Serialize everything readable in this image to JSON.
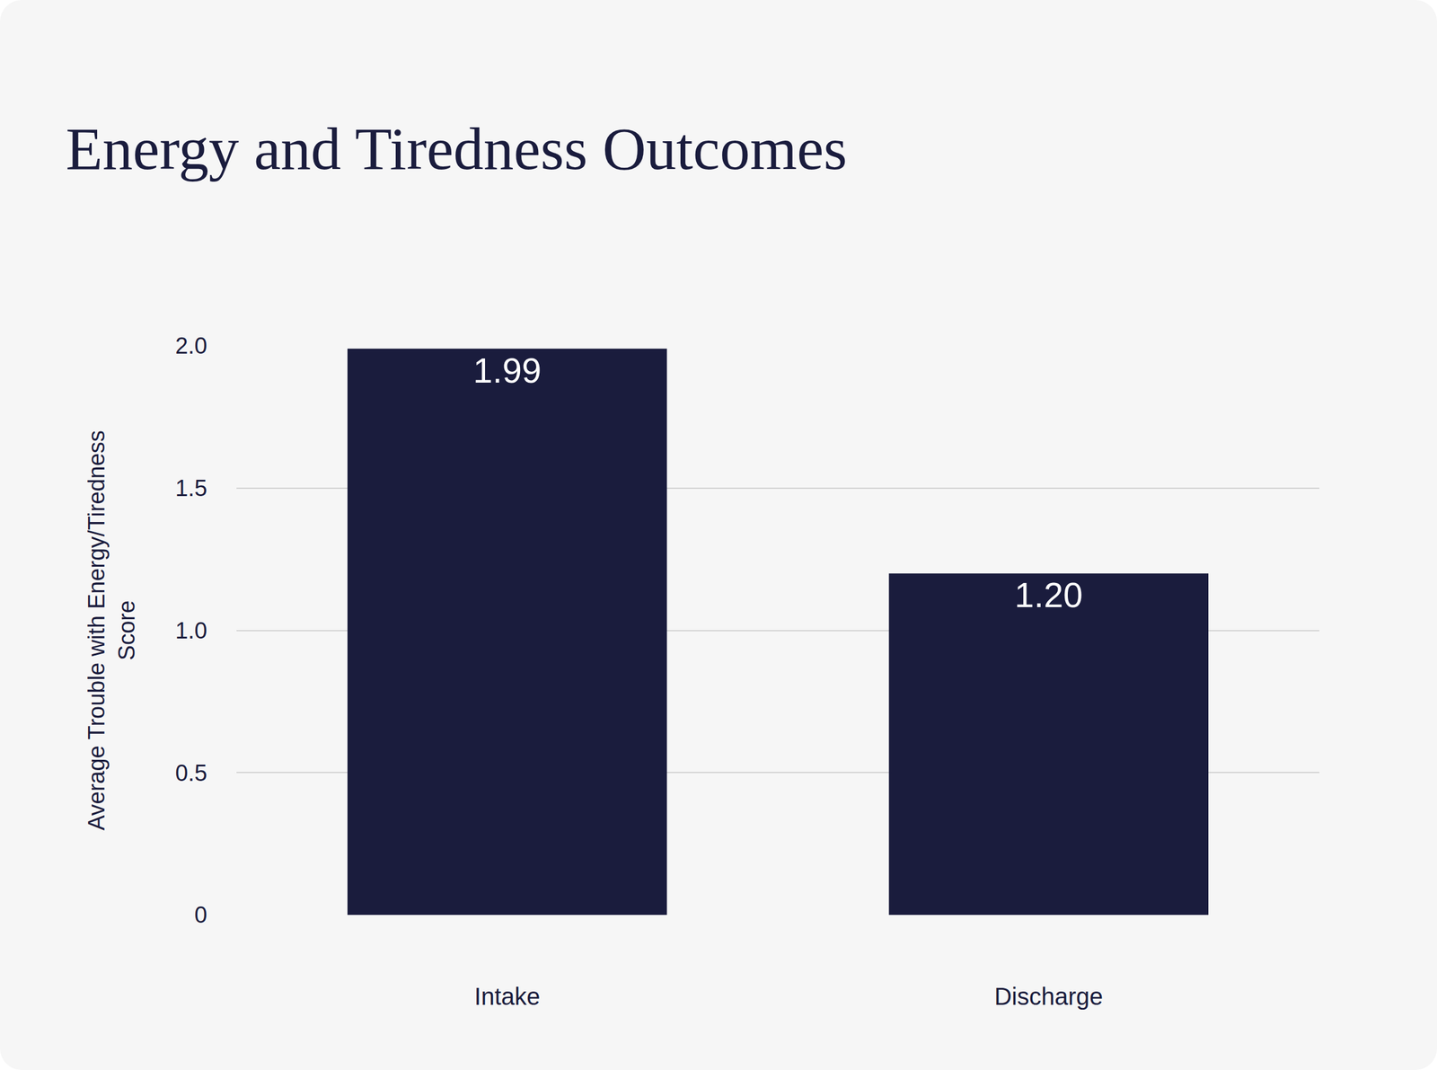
{
  "chart_data": {
    "type": "bar",
    "title": "Energy and Tiredness Outcomes",
    "y_label": "Average Trouble with Energy/Tiredness Score",
    "categories": [
      "Intake",
      "Discharge"
    ],
    "values": [
      1.99,
      1.2
    ],
    "value_labels": [
      "1.99",
      "1.20"
    ],
    "color": "#1a1c3d",
    "ylim": [
      0,
      2
    ],
    "yticks": [
      0,
      0.5,
      {
        "value": 1,
        "label": "1.0"
      },
      1.5,
      {
        "value": 2,
        "label": "2.0"
      }
    ],
    "grid": true,
    "data_labels": true
  }
}
